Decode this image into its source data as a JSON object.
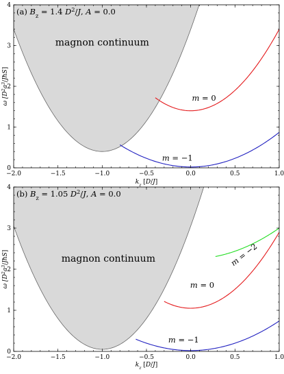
{
  "chart_data": [
    {
      "type": "line",
      "panel_label": "(a)",
      "title": "B_z = 1.4 D²/J,  A = 0.0",
      "title_parts": [
        "(a)",
        "B",
        "z",
        " = 1.4 ",
        "D",
        "2",
        "/",
        "J",
        ",  ",
        "A",
        " = 0.0"
      ],
      "xlabel_parts": [
        "k",
        "z",
        " [",
        "D",
        "/",
        "J",
        "]"
      ],
      "ylabel_parts": [
        "ω [",
        "D",
        "2",
        "a",
        "3",
        "/",
        "J",
        "ħ",
        "S",
        "]"
      ],
      "xlim": [
        -2.0,
        1.0
      ],
      "ylim": [
        0,
        4
      ],
      "xticks": [
        -2.0,
        -1.5,
        -1.0,
        -0.5,
        0.0,
        0.5,
        1.0
      ],
      "xtick_labels": [
        "−2.0",
        "−1.5",
        "−1.0",
        "−0.5",
        "0.0",
        "0.5",
        "1.0"
      ],
      "yticks": [
        0,
        1,
        2,
        3,
        4
      ],
      "ytick_labels": [
        "0",
        "1",
        "2",
        "3",
        "4"
      ],
      "region": {
        "label": "magnon continuum",
        "color": "#d9d9d9",
        "edge_color": "#666666",
        "min": 0.4,
        "center": -1.0,
        "curvature": 3.0
      },
      "series": [
        {
          "name": "m = 0",
          "color": "#e41a1c",
          "x_range": [
            -0.4,
            1.0
          ],
          "y_at_0": 1.4,
          "curvature": 2.0
        },
        {
          "name": "m = −1",
          "color": "#2020c0",
          "x_range": [
            -0.8,
            1.0
          ],
          "y_at_0": 0.02,
          "curvature": 0.85
        }
      ],
      "annotations": [
        {
          "text": "magnon continuum",
          "x": -1.0,
          "y": 3.0
        },
        {
          "text": "m = 0",
          "x": 0.15,
          "y": 1.65
        },
        {
          "text": "m = −1",
          "x": -0.15,
          "y": 0.18
        }
      ]
    },
    {
      "type": "line",
      "panel_label": "(b)",
      "title": "B_z = 1.05 D²/J,  A = 0.0",
      "title_parts": [
        "(b)",
        "B",
        "z",
        " = 1.05 ",
        "D",
        "2",
        "/",
        "J",
        ",  ",
        "A",
        " = 0.0"
      ],
      "xlabel_parts": [
        "k",
        "z",
        " [",
        "D",
        "/",
        "J",
        "]"
      ],
      "ylabel_parts": [
        "ω [",
        "D",
        "2",
        "a",
        "3",
        "/",
        "J",
        "ħ",
        "S",
        "]"
      ],
      "xlim": [
        -2.0,
        1.0
      ],
      "ylim": [
        0,
        4
      ],
      "xticks": [
        -2.0,
        -1.5,
        -1.0,
        -0.5,
        0.0,
        0.5,
        1.0
      ],
      "xtick_labels": [
        "−2.0",
        "−1.5",
        "−1.0",
        "−0.5",
        "0.0",
        "0.5",
        "1.0"
      ],
      "yticks": [
        0,
        1,
        2,
        3,
        4
      ],
      "ytick_labels": [
        "0",
        "1",
        "2",
        "3",
        "4"
      ],
      "region": {
        "label": "magnon continuum",
        "color": "#d9d9d9",
        "edge_color": "#666666",
        "min": 0.05,
        "center": -1.0,
        "curvature": 3.0
      },
      "series": [
        {
          "name": "m = −2",
          "color": "#22dd22",
          "x_range": [
            0.28,
            1.0
          ],
          "y_at_0": 2.25,
          "curvature": 0.75
        },
        {
          "name": "m = 0",
          "color": "#e41a1c",
          "x_range": [
            -0.3,
            1.0
          ],
          "y_at_0": 1.05,
          "curvature": 1.85
        },
        {
          "name": "m = −1",
          "color": "#2020c0",
          "x_range": [
            -0.62,
            1.0
          ],
          "y_at_0": 0.02,
          "curvature": 0.72
        }
      ],
      "annotations": [
        {
          "text": "magnon continuum",
          "x": -0.93,
          "y": 2.18
        },
        {
          "text": "m = −2",
          "x": 0.62,
          "y": 2.3
        },
        {
          "text": "m = 0",
          "x": 0.13,
          "y": 1.55
        },
        {
          "text": "m = −1",
          "x": -0.08,
          "y": 0.22
        }
      ]
    }
  ]
}
